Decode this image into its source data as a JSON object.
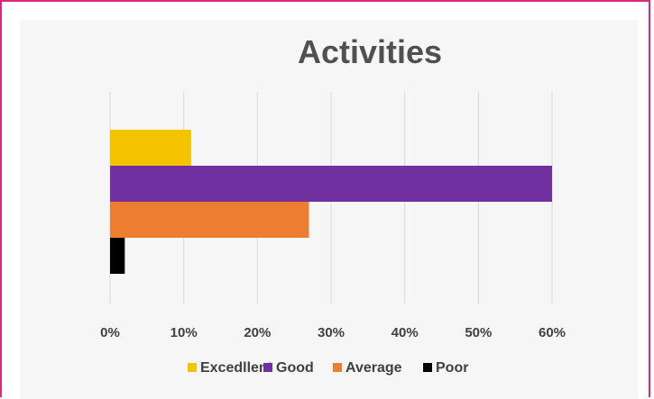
{
  "chart_data": {
    "type": "bar",
    "orientation": "horizontal",
    "title": "Activities",
    "xlabel": "",
    "ylabel": "",
    "xlim": [
      0,
      60
    ],
    "x_ticks": [
      "0%",
      "10%",
      "20%",
      "30%",
      "40%",
      "50%",
      "60%"
    ],
    "grid": true,
    "legend_position": "bottom",
    "series": [
      {
        "name": "Excedllent",
        "value": 11,
        "color": "#f5c400"
      },
      {
        "name": "Good",
        "value": 60,
        "color": "#7030a0"
      },
      {
        "name": "Average",
        "value": 27,
        "color": "#ed7d31"
      },
      {
        "name": "Poor",
        "value": 2,
        "color": "#000000"
      }
    ]
  },
  "colors": {
    "frame_border": "#e0287a",
    "plot_background": "#f6f6f6",
    "gridline": "#d9d9d9"
  }
}
